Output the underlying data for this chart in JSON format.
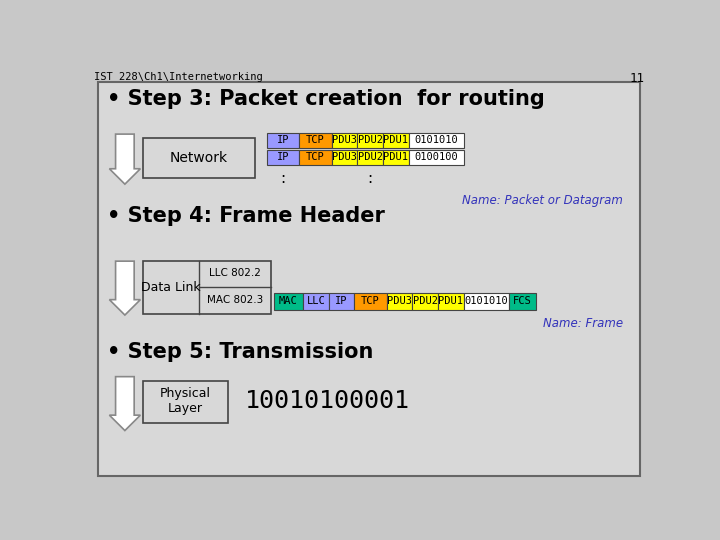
{
  "title_header": "IST 228\\Ch1\\Internetworking",
  "slide_number": "11",
  "bg_color": "#c8c8c8",
  "slide_bg": "#d8d8d8",
  "border_color": "#666666",
  "step3_title": "• Step 3: Packet creation  for routing",
  "step4_title": "• Step 4: Frame Header",
  "step5_title": "• Step 5: Transmission",
  "network_label": "Network",
  "datalink_label": "Data Link",
  "physical_label": "Physical\nLayer",
  "llc_label": "LLC 802.2",
  "mac_label": "MAC 802.3",
  "row1_data": "0101010",
  "row2_data": "0100100",
  "row3_data": "0101010",
  "name_packet": "Name: Packet or Datagram",
  "name_frame": "Name: Frame",
  "transmission_bits": "10010100001",
  "ip_color": "#9999ff",
  "tcp_color": "#ff9900",
  "pdu_color": "#ffff00",
  "mac_color": "#00bb88",
  "llc_color": "#9999ff",
  "fcs_color": "#00bb88",
  "white": "#ffffff",
  "blue_label": "#3333bb",
  "header_bg": "#c8c8c8"
}
